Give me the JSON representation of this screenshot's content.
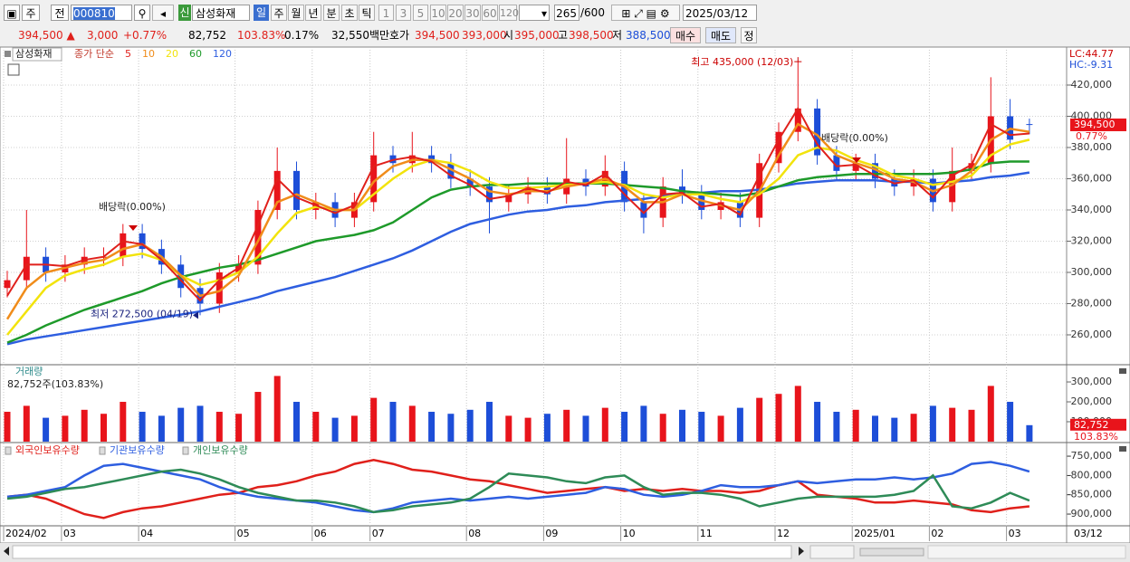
{
  "toolbar": [
    "주",
    "전",
    "000810",
    "신",
    "삼성화재",
    "일",
    "주",
    "월",
    "년",
    "분",
    "초",
    "틱",
    "1",
    "3",
    "5",
    "10",
    "20",
    "30",
    "60",
    "120",
    "265",
    "/600",
    "2025/03/12"
  ],
  "quote": [
    "394,500 ▲",
    "3,000",
    "+0.77%",
    "82,752",
    "103.83%",
    "0.17%",
    "32,550백만",
    "호가",
    "394,500",
    "393,000",
    "시",
    "395,000",
    "고",
    "398,500",
    "저",
    "388,500",
    "매수",
    "매도",
    "정"
  ],
  "chart_data": [
    {
      "type": "candlestick",
      "title": "삼성화재",
      "subtitle": "종가 단순",
      "categories": [
        "2024/02",
        null,
        null,
        "03",
        null,
        null,
        null,
        "04",
        null,
        null,
        null,
        null,
        "05",
        null,
        null,
        null,
        "06",
        null,
        null,
        "07",
        null,
        null,
        null,
        null,
        "08",
        null,
        null,
        null,
        "09",
        null,
        null,
        null,
        "10",
        null,
        null,
        null,
        "11",
        null,
        null,
        null,
        "12",
        null,
        null,
        null,
        "2025/01",
        null,
        null,
        null,
        "02",
        null,
        null,
        null,
        "03",
        null
      ],
      "last_date_label": "03/12",
      "up_color": "#e8141b",
      "down_color": "#1d4ed8",
      "open": [
        290000,
        295000,
        310000,
        300000,
        305000,
        310000,
        310000,
        325000,
        315000,
        305000,
        290000,
        280000,
        300000,
        305000,
        340000,
        365000,
        340000,
        345000,
        335000,
        345000,
        375000,
        370000,
        375000,
        370000,
        360000,
        355000,
        345000,
        350000,
        355000,
        350000,
        360000,
        355000,
        365000,
        345000,
        335000,
        355000,
        350000,
        340000,
        345000,
        335000,
        370000,
        390000,
        405000,
        375000,
        365000,
        370000,
        360000,
        355000,
        360000,
        345000,
        365000,
        370000,
        400000,
        395000
      ],
      "high": [
        301000,
        340000,
        316000,
        311000,
        316000,
        316000,
        331000,
        331000,
        321000,
        311000,
        296000,
        306000,
        311000,
        346000,
        380000,
        371000,
        351000,
        351000,
        351000,
        390000,
        381000,
        390000,
        381000,
        376000,
        366000,
        361000,
        356000,
        361000,
        361000,
        386000,
        366000,
        375000,
        371000,
        351000,
        361000,
        366000,
        356000,
        351000,
        351000,
        376000,
        396000,
        435000,
        411000,
        381000,
        376000,
        376000,
        366000,
        366000,
        366000,
        380000,
        376000,
        425000,
        411000,
        398500
      ],
      "low": [
        284000,
        289000,
        294000,
        294000,
        299000,
        304000,
        304000,
        309000,
        299000,
        284000,
        272500,
        274000,
        294000,
        299000,
        334000,
        334000,
        334000,
        329000,
        329000,
        339000,
        364000,
        364000,
        364000,
        354000,
        349000,
        325000,
        339000,
        344000,
        344000,
        344000,
        349000,
        349000,
        339000,
        325000,
        329000,
        344000,
        334000,
        334000,
        329000,
        329000,
        364000,
        384000,
        369000,
        359000,
        359000,
        354000,
        349000,
        349000,
        339000,
        339000,
        359000,
        364000,
        379000,
        388500
      ],
      "close": [
        295000,
        310000,
        300000,
        305000,
        310000,
        310000,
        325000,
        315000,
        305000,
        290000,
        280000,
        300000,
        305000,
        340000,
        365000,
        340000,
        345000,
        335000,
        345000,
        375000,
        370000,
        375000,
        370000,
        360000,
        355000,
        345000,
        350000,
        355000,
        350000,
        360000,
        355000,
        365000,
        345000,
        335000,
        355000,
        350000,
        340000,
        345000,
        335000,
        370000,
        390000,
        405000,
        375000,
        365000,
        370000,
        360000,
        355000,
        360000,
        345000,
        365000,
        370000,
        400000,
        385000,
        394500
      ],
      "series": [
        {
          "name": "5",
          "color": "#e0201b",
          "values": [
            285000,
            305000,
            305000,
            304000,
            308000,
            310000,
            320000,
            318000,
            308000,
            295000,
            282000,
            295000,
            303000,
            330000,
            360000,
            348000,
            343000,
            338000,
            343000,
            368000,
            372000,
            374000,
            371000,
            362000,
            356000,
            347000,
            349000,
            354000,
            351000,
            358000,
            356000,
            363000,
            350000,
            338000,
            350000,
            351000,
            342000,
            344000,
            337000,
            362000,
            385000,
            405000,
            382000,
            368000,
            369000,
            362000,
            357000,
            359000,
            348000,
            362000,
            369000,
            395000,
            388000,
            389000
          ]
        },
        {
          "name": "10",
          "color": "#f08c1a",
          "values": [
            270000,
            290000,
            300000,
            303000,
            306000,
            308000,
            315000,
            318000,
            310000,
            298000,
            285000,
            288000,
            298000,
            320000,
            345000,
            350000,
            345000,
            340000,
            340000,
            358000,
            368000,
            372000,
            372000,
            366000,
            360000,
            352000,
            350000,
            352000,
            352000,
            355000,
            357000,
            360000,
            355000,
            345000,
            345000,
            350000,
            346000,
            343000,
            340000,
            352000,
            375000,
            395000,
            388000,
            375000,
            370000,
            366000,
            360000,
            358000,
            352000,
            356000,
            365000,
            385000,
            392000,
            390000
          ]
        },
        {
          "name": "20",
          "color": "#f2e30c",
          "values": [
            260000,
            275000,
            290000,
            298000,
            302000,
            305000,
            310000,
            312000,
            308000,
            298000,
            292000,
            295000,
            300000,
            310000,
            325000,
            338000,
            342000,
            340000,
            340000,
            350000,
            360000,
            368000,
            372000,
            370000,
            365000,
            358000,
            354000,
            354000,
            355000,
            356000,
            357000,
            358000,
            356000,
            350000,
            348000,
            350000,
            350000,
            347000,
            345000,
            350000,
            360000,
            375000,
            380000,
            378000,
            372000,
            368000,
            362000,
            360000,
            356000,
            358000,
            362000,
            375000,
            382000,
            385000
          ]
        },
        {
          "name": "60",
          "color": "#1e9a2a",
          "values": [
            255000,
            260000,
            266000,
            271000,
            276000,
            280000,
            284000,
            288000,
            293000,
            297000,
            300000,
            303000,
            305000,
            308000,
            312000,
            316000,
            320000,
            322000,
            324000,
            327000,
            332000,
            340000,
            348000,
            353000,
            355000,
            356000,
            356000,
            357000,
            357000,
            357000,
            357000,
            357000,
            356000,
            355000,
            354000,
            352000,
            351000,
            350000,
            349000,
            351000,
            355000,
            359000,
            361000,
            362000,
            363000,
            363000,
            363000,
            363000,
            363000,
            364000,
            366000,
            370000,
            371000,
            371000
          ]
        },
        {
          "name": "120",
          "color": "#2e5ee0",
          "values": [
            254000,
            257000,
            259000,
            261000,
            263000,
            265000,
            267000,
            269000,
            271000,
            273000,
            275000,
            278000,
            281000,
            284000,
            288000,
            291000,
            294000,
            297000,
            301000,
            305000,
            309000,
            314000,
            320000,
            326000,
            331000,
            334000,
            337000,
            339000,
            340000,
            342000,
            343000,
            345000,
            346000,
            347000,
            349000,
            350000,
            351000,
            352000,
            352000,
            353000,
            355000,
            357000,
            358000,
            359000,
            359000,
            359000,
            358000,
            358000,
            357000,
            358000,
            359000,
            361000,
            362000,
            364000
          ]
        }
      ],
      "ylim": [
        242600,
        442600
      ],
      "yticks": [
        {
          "value": 260000,
          "label": "260,000"
        },
        {
          "value": 280000,
          "label": "280,000"
        },
        {
          "value": 300000,
          "label": "300,000"
        },
        {
          "value": 320000,
          "label": "320,000"
        },
        {
          "value": 340000,
          "label": "340,000"
        },
        {
          "value": 360000,
          "label": "360,000"
        },
        {
          "value": 380000,
          "label": "380,000"
        },
        {
          "value": 400000,
          "label": "400,000"
        },
        {
          "value": 420000,
          "label": "420,000"
        }
      ],
      "grid": true,
      "annotations": [
        "최고 435,000 (12/03)",
        "최저 272,500 (04/19)",
        "배당락(0.00%)",
        "배당락(0.00%)"
      ],
      "last_label": "394,500",
      "last_change_label": "0.77%",
      "lc_label": "LC:44.77",
      "hc_label": "HC:-9.31"
    },
    {
      "type": "bar",
      "title": "거래량",
      "subtitle": "82,752주(103.83%)",
      "values": [
        150000,
        180000,
        120000,
        130000,
        160000,
        140000,
        200000,
        150000,
        130000,
        170000,
        180000,
        150000,
        140000,
        250000,
        330000,
        200000,
        150000,
        120000,
        130000,
        220000,
        200000,
        180000,
        150000,
        140000,
        160000,
        200000,
        130000,
        120000,
        140000,
        160000,
        130000,
        170000,
        150000,
        180000,
        140000,
        160000,
        150000,
        130000,
        170000,
        220000,
        240000,
        280000,
        200000,
        150000,
        160000,
        130000,
        120000,
        140000,
        180000,
        170000,
        160000,
        280000,
        200000,
        82752
      ],
      "ylim": [
        0,
        382000
      ],
      "yticks": [
        {
          "value": 100000,
          "label": "100,000"
        },
        {
          "value": 200000,
          "label": "200,000"
        },
        {
          "value": 300000,
          "label": "300,000"
        }
      ],
      "last_label": "82,752",
      "last_pct_label": "103.83%"
    },
    {
      "type": "line",
      "series": [
        {
          "name": "외국인보유수량",
          "color": "#e0201b",
          "values": [
            -855000,
            -850000,
            -860000,
            -880000,
            -900000,
            -910000,
            -895000,
            -885000,
            -880000,
            -870000,
            -860000,
            -850000,
            -845000,
            -830000,
            -825000,
            -815000,
            -800000,
            -790000,
            -770000,
            -760000,
            -770000,
            -785000,
            -790000,
            -800000,
            -810000,
            -815000,
            -825000,
            -835000,
            -845000,
            -840000,
            -835000,
            -830000,
            -840000,
            -835000,
            -840000,
            -835000,
            -840000,
            -840000,
            -845000,
            -840000,
            -825000,
            -815000,
            -850000,
            -855000,
            -860000,
            -870000,
            -870000,
            -865000,
            -870000,
            -875000,
            -890000,
            -895000,
            -885000,
            -880000
          ]
        },
        {
          "name": "기관보유수량",
          "color": "#2e5ee0",
          "values": [
            -855000,
            -850000,
            -840000,
            -830000,
            -800000,
            -775000,
            -770000,
            -780000,
            -790000,
            -800000,
            -810000,
            -830000,
            -845000,
            -855000,
            -860000,
            -865000,
            -870000,
            -880000,
            -890000,
            -895000,
            -885000,
            -870000,
            -865000,
            -860000,
            -865000,
            -860000,
            -855000,
            -860000,
            -855000,
            -850000,
            -845000,
            -830000,
            -835000,
            -850000,
            -855000,
            -850000,
            -840000,
            -825000,
            -830000,
            -830000,
            -825000,
            -815000,
            -820000,
            -815000,
            -810000,
            -810000,
            -805000,
            -810000,
            -805000,
            -795000,
            -770000,
            -765000,
            -775000,
            -790000
          ]
        },
        {
          "name": "개인보유수량",
          "color": "#2e8b57",
          "values": [
            -860000,
            -855000,
            -845000,
            -835000,
            -830000,
            -820000,
            -810000,
            -800000,
            -790000,
            -785000,
            -795000,
            -810000,
            -830000,
            -845000,
            -855000,
            -865000,
            -865000,
            -870000,
            -880000,
            -895000,
            -890000,
            -880000,
            -875000,
            -870000,
            -860000,
            -830000,
            -795000,
            -800000,
            -805000,
            -815000,
            -820000,
            -805000,
            -800000,
            -830000,
            -850000,
            -845000,
            -845000,
            -850000,
            -860000,
            -880000,
            -870000,
            -860000,
            -855000,
            -855000,
            -855000,
            -855000,
            -850000,
            -840000,
            -800000,
            -880000,
            -885000,
            -870000,
            -845000,
            -865000
          ]
        }
      ],
      "ylim": [
        -928000,
        -717000
      ],
      "yticks": [
        {
          "value": -750000,
          "label": "-750,000"
        },
        {
          "value": -800000,
          "label": "-800,000"
        },
        {
          "value": -850000,
          "label": "-850,000"
        },
        {
          "value": -900000,
          "label": "-900,000"
        }
      ]
    }
  ]
}
